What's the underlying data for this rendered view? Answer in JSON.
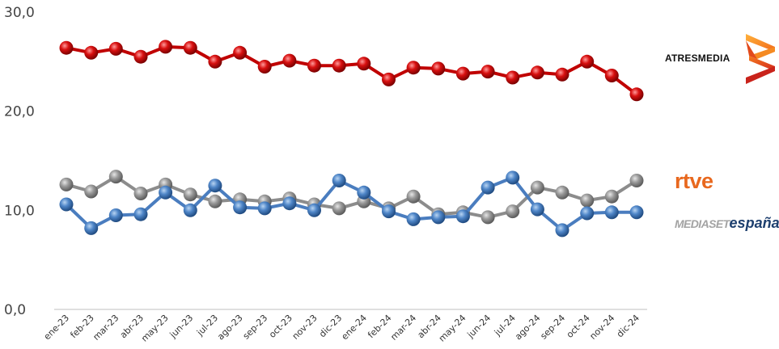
{
  "chart_data": {
    "type": "line",
    "categories": [
      "ene-23",
      "feb-23",
      "mar-23",
      "abr-23",
      "may-23",
      "jun-23",
      "jul-23",
      "ago-23",
      "sep-23",
      "oct-23",
      "nov-23",
      "dic-23",
      "ene-24",
      "feb-24",
      "mar-24",
      "abr-24",
      "may-24",
      "jun-24",
      "jul-24",
      "ago-24",
      "sep-24",
      "oct-24",
      "nov-24",
      "dic-24"
    ],
    "y_ticks": [
      "0,0",
      "10,0",
      "20,0",
      "30,0"
    ],
    "ylim": [
      0,
      30
    ],
    "grid": false,
    "series": [
      {
        "key": "atresmedia",
        "color": "#c00000",
        "values": [
          26.4,
          25.9,
          26.3,
          25.5,
          26.5,
          26.4,
          25.0,
          25.9,
          24.5,
          25.1,
          24.6,
          24.6,
          24.8,
          23.2,
          24.4,
          24.3,
          23.8,
          24.0,
          23.4,
          23.9,
          23.7,
          25.0,
          23.6,
          21.7
        ]
      },
      {
        "key": "rtve",
        "color": "#8c8c8c",
        "values": [
          12.6,
          11.9,
          13.4,
          11.7,
          12.6,
          11.6,
          10.9,
          11.1,
          10.9,
          11.2,
          10.6,
          10.2,
          10.9,
          10.2,
          11.4,
          9.6,
          9.8,
          9.3,
          9.9,
          12.3,
          11.8,
          11.0,
          11.4,
          13.0
        ]
      },
      {
        "key": "mediaset",
        "color": "#4a7dbf",
        "values": [
          10.6,
          8.2,
          9.5,
          9.6,
          11.8,
          10.0,
          12.5,
          10.3,
          10.2,
          10.7,
          10.0,
          13.0,
          11.8,
          9.9,
          9.1,
          9.3,
          9.4,
          12.3,
          13.3,
          10.1,
          8.0,
          9.7,
          9.8,
          9.8
        ]
      }
    ]
  },
  "logos": {
    "atresmedia": {
      "text": "ATRESMEDIA",
      "icon": "atresmedia-chevron-icon"
    },
    "rtve": {
      "text": "rtve"
    },
    "mediaset": {
      "text_light": "MEDIASET",
      "text_dark": "españa."
    }
  }
}
